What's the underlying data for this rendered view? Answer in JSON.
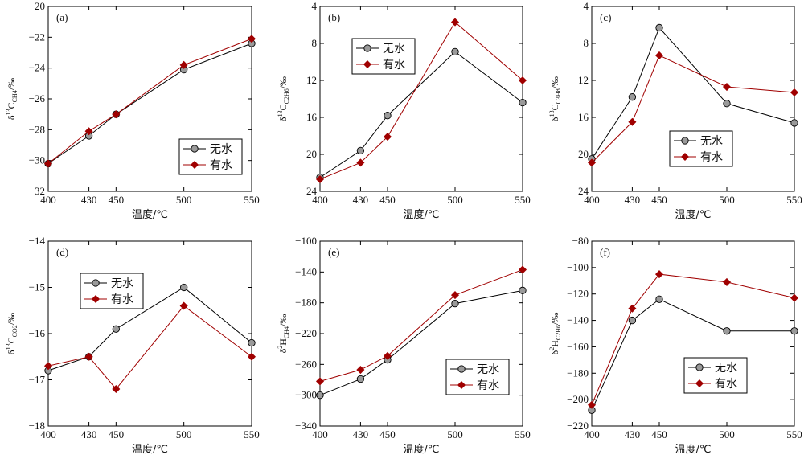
{
  "chart_data": [
    {
      "type": "line",
      "panel_label": "(a)",
      "ylabel": {
        "pre": "δ",
        "sup": "13",
        "main": "C",
        "sub": "CH4",
        "post": "/‰"
      },
      "xlabel": "温度/℃",
      "categories": [
        "400",
        "430",
        "450",
        "500",
        "550"
      ],
      "ylim": [
        -32,
        -20
      ],
      "yticks": [
        -32,
        -30,
        -28,
        -26,
        -24,
        -22,
        -20
      ],
      "ytick_labels": [
        "−32",
        "−30",
        "−28",
        "−26",
        "−24",
        "−22",
        "−20"
      ],
      "legend_position": "lower-right",
      "series": [
        {
          "name": "无水",
          "marker": "circle",
          "color": "#000000",
          "values": [
            -30.2,
            -28.4,
            -27.0,
            -24.1,
            -22.4
          ]
        },
        {
          "name": "有水",
          "marker": "diamond",
          "color": "#a00000",
          "values": [
            -30.2,
            -28.1,
            -27.0,
            -23.8,
            -22.1
          ]
        }
      ]
    },
    {
      "type": "line",
      "panel_label": "(b)",
      "ylabel": {
        "pre": "δ",
        "sup": "13",
        "main": "C",
        "sub": "C2H6",
        "post": "/‰"
      },
      "xlabel": "温度/℃",
      "categories": [
        "400",
        "430",
        "450",
        "500",
        "550"
      ],
      "ylim": [
        -24,
        -4
      ],
      "yticks": [
        -24,
        -20,
        -16,
        -12,
        -8,
        -4
      ],
      "ytick_labels": [
        "−24",
        "−20",
        "−16",
        "−12",
        "−8",
        "−4"
      ],
      "legend_position": "upper-left",
      "series": [
        {
          "name": "无水",
          "marker": "circle",
          "color": "#000000",
          "values": [
            -22.5,
            -19.6,
            -15.8,
            -8.9,
            -14.4
          ]
        },
        {
          "name": "有水",
          "marker": "diamond",
          "color": "#a00000",
          "values": [
            -22.7,
            -20.9,
            -18.1,
            -5.7,
            -12.0
          ]
        }
      ]
    },
    {
      "type": "line",
      "panel_label": "(c)",
      "ylabel": {
        "pre": "δ",
        "sup": "13",
        "main": "C",
        "sub": "C3H8",
        "post": "/‰"
      },
      "xlabel": "温度/℃",
      "categories": [
        "400",
        "430",
        "450",
        "500",
        "550"
      ],
      "ylim": [
        -24,
        -4
      ],
      "yticks": [
        -24,
        -20,
        -16,
        -12,
        -8,
        -4
      ],
      "ytick_labels": [
        "−24",
        "−20",
        "−16",
        "−12",
        "−8",
        "−4"
      ],
      "legend_position": "lower-right",
      "series": [
        {
          "name": "无水",
          "marker": "circle",
          "color": "#000000",
          "values": [
            -20.5,
            -13.8,
            -6.3,
            -14.5,
            -16.6
          ]
        },
        {
          "name": "有水",
          "marker": "diamond",
          "color": "#a00000",
          "values": [
            -20.9,
            -16.5,
            -9.3,
            -12.7,
            -13.3
          ]
        }
      ]
    },
    {
      "type": "line",
      "panel_label": "(d)",
      "ylabel": {
        "pre": "δ",
        "sup": "13",
        "main": "C",
        "sub": "CO2",
        "post": "/‰"
      },
      "xlabel": "温度/℃",
      "categories": [
        "400",
        "430",
        "450",
        "500",
        "550"
      ],
      "ylim": [
        -18,
        -14
      ],
      "yticks": [
        -18,
        -17,
        -16,
        -15,
        -14
      ],
      "ytick_labels": [
        "−18",
        "−17",
        "−16",
        "−15",
        "−14"
      ],
      "legend_position": "upper-left",
      "series": [
        {
          "name": "无水",
          "marker": "circle",
          "color": "#000000",
          "values": [
            -16.8,
            -16.5,
            -15.9,
            -15.0,
            -16.2
          ]
        },
        {
          "name": "有水",
          "marker": "diamond",
          "color": "#a00000",
          "values": [
            -16.7,
            -16.5,
            -17.2,
            -15.4,
            -16.5
          ]
        }
      ]
    },
    {
      "type": "line",
      "panel_label": "(e)",
      "ylabel": {
        "pre": "δ",
        "sup": "2",
        "main": "H",
        "sub": "CH4",
        "post": "/‰"
      },
      "xlabel": "温度/℃",
      "categories": [
        "400",
        "430",
        "450",
        "500",
        "550"
      ],
      "ylim": [
        -340,
        -100
      ],
      "yticks": [
        -340,
        -300,
        -260,
        -220,
        -180,
        -140,
        -100
      ],
      "ytick_labels": [
        "−340",
        "−300",
        "−260",
        "−220",
        "−180",
        "−140",
        "−100"
      ],
      "legend_position": "lower-right",
      "series": [
        {
          "name": "无水",
          "marker": "circle",
          "color": "#000000",
          "values": [
            -300,
            -279,
            -254,
            -181,
            -164
          ]
        },
        {
          "name": "有水",
          "marker": "diamond",
          "color": "#a00000",
          "values": [
            -282,
            -267,
            -249,
            -170,
            -137
          ]
        }
      ]
    },
    {
      "type": "line",
      "panel_label": "(f)",
      "ylabel": {
        "pre": "δ",
        "sup": "2",
        "main": "H",
        "sub": "C2H6",
        "post": "/‰"
      },
      "xlabel": "温度/℃",
      "categories": [
        "400",
        "430",
        "450",
        "500",
        "550"
      ],
      "ylim": [
        -220,
        -80
      ],
      "yticks": [
        -220,
        -200,
        -180,
        -160,
        -140,
        -120,
        -100,
        -80
      ],
      "ytick_labels": [
        "−220",
        "−200",
        "−180",
        "−160",
        "−140",
        "−120",
        "−100",
        "−80"
      ],
      "legend_position": "lower-right",
      "series": [
        {
          "name": "无水",
          "marker": "circle",
          "color": "#000000",
          "values": [
            -208,
            -140,
            -124,
            -148,
            -148
          ]
        },
        {
          "name": "有水",
          "marker": "diamond",
          "color": "#a00000",
          "values": [
            -204,
            -131,
            -105,
            -111,
            -123
          ]
        }
      ]
    }
  ]
}
